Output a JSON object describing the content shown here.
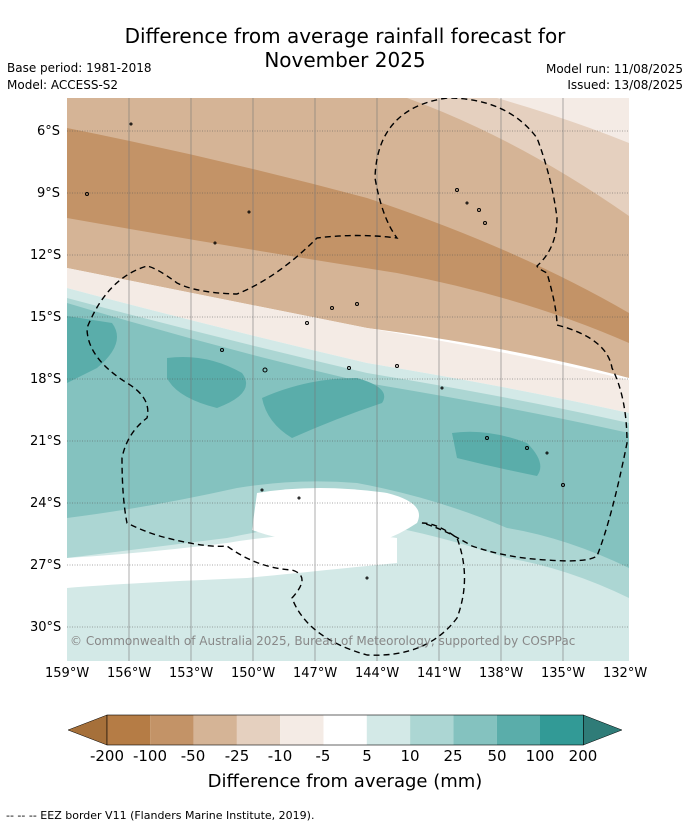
{
  "title": {
    "line1": "Difference from average rainfall forecast for",
    "line2": "November 2025"
  },
  "meta": {
    "base_period": "Base period: 1981-2018",
    "model": "Model: ACCESS-S2",
    "model_run": "Model run: 11/08/2025",
    "issued": "Issued: 13/08/2025"
  },
  "axes": {
    "y_ticks": [
      "6°S",
      "9°S",
      "12°S",
      "15°S",
      "18°S",
      "21°S",
      "24°S",
      "27°S",
      "30°S"
    ],
    "x_ticks": [
      "159°W",
      "156°W",
      "153°W",
      "150°W",
      "147°W",
      "144°W",
      "141°W",
      "138°W",
      "135°W",
      "132°W"
    ]
  },
  "credit": "© Commonwealth of Australia 2025, Bureau of Meteorology, supported by COSPPac",
  "colorbar": {
    "labels": [
      "-200",
      "-100",
      "-50",
      "-25",
      "-10",
      "-5",
      "5",
      "10",
      "25",
      "50",
      "100",
      "200"
    ],
    "colors": [
      "#a6703a",
      "#b57c45",
      "#c39367",
      "#d5b496",
      "#e5d0bf",
      "#f4ebe5",
      "#ffffff",
      "#d3e9e7",
      "#acd6d3",
      "#84c2bf",
      "#5aadaa",
      "#329a96",
      "#2f7c78"
    ],
    "title": "Difference from average (mm)"
  },
  "footnote": "--  --  -- EEZ border V11 (Flanders Marine Institute, 2019).",
  "map_data": {
    "lon_range": [
      -159,
      -132
    ],
    "lat_range": [
      -32,
      -4
    ],
    "bands": [
      {
        "class": "-5 to 5",
        "color": "#ffffff"
      },
      {
        "class": "-10 to -5",
        "color": "#f4ebe5"
      },
      {
        "class": "-25 to -10",
        "color": "#e5d0bf"
      },
      {
        "class": "-50 to -25",
        "color": "#d5b496"
      },
      {
        "class": "-100 to -50",
        "color": "#c39367"
      },
      {
        "class": "5 to 10",
        "color": "#d3e9e7"
      },
      {
        "class": "10 to 25",
        "color": "#acd6d3"
      },
      {
        "class": "25 to 50",
        "color": "#84c2bf"
      },
      {
        "class": "50 to 100",
        "color": "#5aadaa"
      }
    ]
  }
}
